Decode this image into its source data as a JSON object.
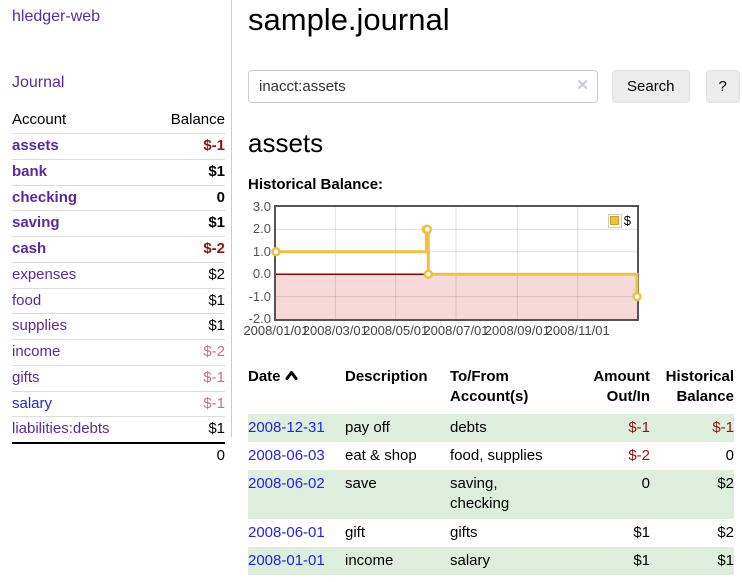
{
  "app": {
    "brand": "hledger-web"
  },
  "sidebar": {
    "nav": {
      "journal": "Journal"
    },
    "headers": {
      "account": "Account",
      "balance": "Balance"
    },
    "accounts": [
      {
        "name": "assets",
        "balance": "$-1"
      },
      {
        "name": "bank",
        "balance": "$1"
      },
      {
        "name": "checking",
        "balance": "0"
      },
      {
        "name": "saving",
        "balance": "$1"
      },
      {
        "name": "cash",
        "balance": "$-2"
      },
      {
        "name": "expenses",
        "balance": "$2"
      },
      {
        "name": "food",
        "balance": "$1"
      },
      {
        "name": "supplies",
        "balance": "$1"
      },
      {
        "name": "income",
        "balance": "$-2"
      },
      {
        "name": "gifts",
        "balance": "$-1"
      },
      {
        "name": "salary",
        "balance": "$-1"
      },
      {
        "name": "liabilities:debts",
        "balance": "$1"
      }
    ],
    "total": "0"
  },
  "header": {
    "title": "sample.journal"
  },
  "search": {
    "value": "inacct:assets",
    "clear_icon": "✕",
    "button_label": "Search",
    "help_label": "?"
  },
  "account_page": {
    "heading": "assets",
    "chart_title": "Historical Balance:"
  },
  "chart_data": {
    "type": "line",
    "style": "steps",
    "title": "Historical Balance:",
    "series": [
      {
        "name": "$",
        "color": "#edc240",
        "points": [
          {
            "date": "2008-01-01",
            "value": 1
          },
          {
            "date": "2008-06-01",
            "value": 2
          },
          {
            "date": "2008-06-02",
            "value": 2
          },
          {
            "date": "2008-06-03",
            "value": 0
          },
          {
            "date": "2008-12-31",
            "value": -1
          }
        ]
      }
    ],
    "xrange": [
      "2008-01-01",
      "2008-12-31"
    ],
    "ylim": [
      -2.0,
      3.0
    ],
    "yticks": [
      "3.0",
      "2.0",
      "1.0",
      "0.0",
      "-1.0",
      "-2.0"
    ],
    "xticks": [
      "2008/01/01",
      "2008/03/01",
      "2008/05/01",
      "2008/07/01",
      "2008/09/01",
      "2008/11/01"
    ],
    "grid": true,
    "legend_position": "top-right",
    "negative_region_color": "#f8d9d9",
    "zero_line_color": "#8b0000",
    "grid_line_color": "rgba(84,84,84,0.18)"
  },
  "register": {
    "headers": {
      "date": "Date",
      "description": "Description",
      "accounts": "To/From Account(s)",
      "amount": "Amount Out/In",
      "balance": "Historical Balance"
    },
    "rows": [
      {
        "date": "2008-12-31",
        "description": "pay off",
        "accounts": "debts",
        "amount": "$-1",
        "balance": "$-1"
      },
      {
        "date": "2008-06-03",
        "description": "eat & shop",
        "accounts": "food, supplies",
        "amount": "$-2",
        "balance": "0"
      },
      {
        "date": "2008-06-02",
        "description": "save",
        "accounts": "saving, checking",
        "amount": "0",
        "balance": "$2"
      },
      {
        "date": "2008-06-01",
        "description": "gift",
        "accounts": "gifts",
        "amount": "$1",
        "balance": "$2"
      },
      {
        "date": "2008-01-01",
        "description": "income",
        "accounts": "salary",
        "amount": "$1",
        "balance": "$1"
      }
    ]
  }
}
